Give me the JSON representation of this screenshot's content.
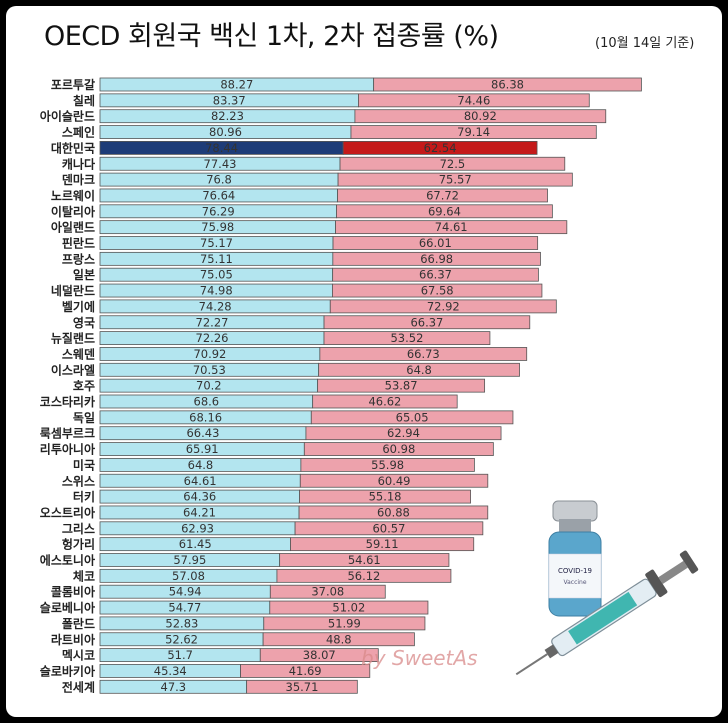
{
  "title": "OECD 회원국 백신 1차, 2차 접종률 (%)",
  "subtitle": "(10월 14일 기준)",
  "watermark": "by SweetAs",
  "vial_label": "COVID-19",
  "vial_sublabel": "Vaccine",
  "chart_data": {
    "type": "bar",
    "orientation": "horizontal-stacked",
    "title": "OECD 회원국 백신 1차, 2차 접종률 (%)",
    "categories": [
      "포르투갈",
      "칠레",
      "아이슬란드",
      "스페인",
      "대한민국",
      "캐나다",
      "덴마크",
      "노르웨이",
      "이탈리아",
      "아일랜드",
      "핀란드",
      "프랑스",
      "일본",
      "네덜란드",
      "벨기에",
      "영국",
      "뉴질랜드",
      "스웨덴",
      "이스라엘",
      "호주",
      "코스타리카",
      "독일",
      "룩셈부르크",
      "리투아니아",
      "미국",
      "스위스",
      "터키",
      "오스트리아",
      "그리스",
      "헝가리",
      "에스토니아",
      "체코",
      "콜롬비아",
      "슬로베니아",
      "폴란드",
      "라트비아",
      "멕시코",
      "슬로바키아",
      "전세계"
    ],
    "highlight": "대한민국",
    "series": [
      {
        "name": "1차 접종률",
        "color": "#b3e5ef",
        "highlight_color": "#1e3c78",
        "values": [
          88.27,
          83.37,
          82.23,
          80.96,
          78.44,
          77.43,
          76.8,
          76.64,
          76.29,
          75.98,
          75.17,
          75.11,
          75.05,
          74.98,
          74.28,
          72.27,
          72.26,
          70.92,
          70.53,
          70.2,
          68.6,
          68.16,
          66.43,
          65.91,
          64.8,
          64.61,
          64.36,
          64.21,
          62.93,
          61.45,
          57.95,
          57.08,
          54.94,
          54.77,
          52.83,
          52.62,
          51.7,
          45.34,
          47.3
        ]
      },
      {
        "name": "2차 접종률",
        "color": "#eda2ac",
        "highlight_color": "#c41a1a",
        "values": [
          86.38,
          74.46,
          80.92,
          79.14,
          62.54,
          72.5,
          75.57,
          67.72,
          69.64,
          74.61,
          66.01,
          66.98,
          66.37,
          67.58,
          72.92,
          66.37,
          53.52,
          66.73,
          64.8,
          53.87,
          46.62,
          65.05,
          62.94,
          60.98,
          55.98,
          60.49,
          55.18,
          60.88,
          60.57,
          59.11,
          54.61,
          56.12,
          37.08,
          51.02,
          51.99,
          48.8,
          38.07,
          41.69,
          35.71
        ]
      }
    ]
  }
}
